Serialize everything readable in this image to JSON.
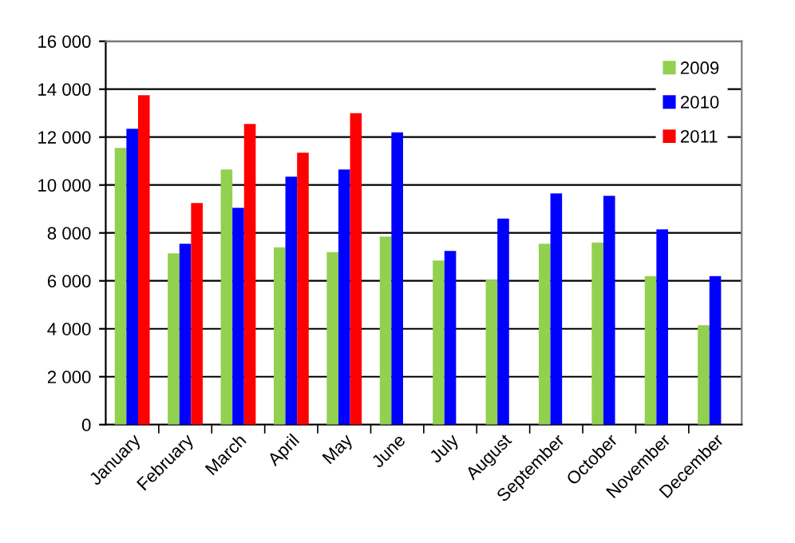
{
  "chart_data": {
    "type": "bar",
    "categories": [
      "January",
      "February",
      "March",
      "April",
      "May",
      "June",
      "July",
      "August",
      "September",
      "October",
      "November",
      "December"
    ],
    "series": [
      {
        "name": "2009",
        "color": "#92d050",
        "values": [
          11550,
          7150,
          10650,
          7400,
          7200,
          7850,
          6850,
          6050,
          7550,
          7600,
          6200,
          4150
        ]
      },
      {
        "name": "2010",
        "color": "#0000ff",
        "values": [
          12350,
          7550,
          9050,
          10350,
          10650,
          12200,
          7250,
          8600,
          9650,
          9550,
          8150,
          6200
        ]
      },
      {
        "name": "2011",
        "color": "#ff0000",
        "values": [
          13750,
          9250,
          12550,
          11350,
          13000,
          null,
          null,
          null,
          null,
          null,
          null,
          null
        ]
      }
    ],
    "ylim": [
      0,
      16000
    ],
    "yticks": [
      0,
      {
        "value": 2000,
        "label": "2 000"
      },
      {
        "value": 4000,
        "label": "4 000"
      },
      {
        "value": 6000,
        "label": "6 000"
      },
      {
        "value": 8000,
        "label": "8 000"
      },
      {
        "value": 10000,
        "label": "10 000"
      },
      {
        "value": 12000,
        "label": "12 000"
      },
      {
        "value": 14000,
        "label": "14 000"
      },
      {
        "value": 16000,
        "label": "16 000"
      }
    ],
    "grid": "y",
    "legend": "top right"
  }
}
